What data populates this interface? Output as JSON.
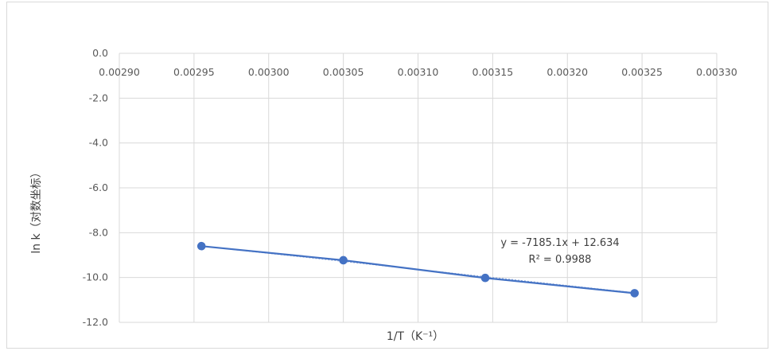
{
  "chart_data": {
    "type": "scatter",
    "title": "",
    "xlabel": "1/T（K⁻¹）",
    "ylabel": "ln k（对数坐标）",
    "xlim": [
      0.0029,
      0.0033
    ],
    "ylim": [
      -12.0,
      0.0
    ],
    "x_ticks": [
      "0.00290",
      "0.00295",
      "0.00300",
      "0.00305",
      "0.00310",
      "0.00315",
      "0.00320",
      "0.00325",
      "0.00330"
    ],
    "y_ticks": [
      "0.0",
      "-2.0",
      "-4.0",
      "-6.0",
      "-8.0",
      "-10.0",
      "-12.0"
    ],
    "series": [
      {
        "x": [
          0.002955,
          0.00305,
          0.003145,
          0.003245
        ],
        "y": [
          -8.6,
          -9.23,
          -10.02,
          -10.7
        ]
      }
    ],
    "trendline": {
      "equation": "y = -7185.1x + 12.634",
      "r_squared": "R² = 0.9988"
    },
    "grid": true,
    "x_axis_position": "top",
    "legend": "none",
    "colors": {
      "series": "#4472c4",
      "grid": "#d9d9d9",
      "text": "#595959"
    }
  }
}
